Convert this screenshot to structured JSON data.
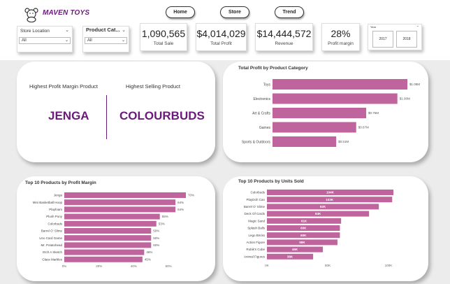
{
  "header": {
    "brand": "MAVEN TOYS",
    "nav": [
      {
        "label": "Home"
      },
      {
        "label": "Store"
      },
      {
        "label": "Trend"
      }
    ]
  },
  "slicers": {
    "store_location": {
      "label": "Store Location",
      "value": "All"
    },
    "product_category": {
      "label": "Product Cat...",
      "value": "All"
    }
  },
  "kpis": {
    "total_sale": {
      "value": "1,090,565",
      "caption": "Total Sale"
    },
    "total_profit": {
      "value": "$4,014,029",
      "caption": "Total Profit"
    },
    "revenue": {
      "value": "$14,444,572",
      "caption": "Revenue"
    },
    "profit_margin": {
      "value": "28%",
      "caption": "Profit margin"
    }
  },
  "year_slicer": {
    "label": "Year",
    "options": [
      "2017",
      "2018"
    ]
  },
  "highlights": {
    "margin_label": "Highest Profit Margin Product",
    "margin_value": "JENGA",
    "selling_label": "Highest Selling Product",
    "selling_value": "COLOURBUDS"
  },
  "colors": {
    "bar": "#c0649e",
    "accent": "#6a1b7a"
  },
  "chart_data": [
    {
      "type": "bar",
      "orientation": "horizontal",
      "title": "Total Profit by Product Category",
      "categories": [
        "Toys",
        "Electronics",
        "Art & Crafts",
        "Games",
        "Sports & Outdoors"
      ],
      "values": [
        1.08,
        1.0,
        0.75,
        0.67,
        0.51
      ],
      "data_labels": [
        "$1.08M",
        "$1.00M",
        "$0.75M",
        "$0.67M",
        "$0.51M"
      ],
      "xlim": [
        0,
        1.08
      ],
      "grid": false
    },
    {
      "type": "bar",
      "orientation": "horizontal",
      "title": "Top 10 Products by Profit Margin",
      "categories": [
        "Jenga",
        "Mini Basketball Hoop",
        "Playfoam",
        "Plush Pony",
        "Colorbuds",
        "Barrel O' Slime",
        "Uno Card Game",
        "Mr. Potatohead",
        "Etch A Sketch",
        "Glass Marbles"
      ],
      "values": [
        70,
        64,
        64,
        55,
        53,
        50,
        50,
        50,
        46,
        45
      ],
      "data_labels": [
        "70%",
        "64%",
        "64%",
        "55%",
        "53%",
        "50%",
        "50%",
        "50%",
        "46%",
        "45%"
      ],
      "xticks": [
        "0%",
        "20%",
        "40%",
        "60%"
      ],
      "xlim": [
        0,
        70
      ],
      "grid": false
    },
    {
      "type": "bar",
      "orientation": "horizontal",
      "title": "Top 10 Products by Units Sold",
      "categories": [
        "Colorbuds",
        "PlayDoh Can",
        "Barrel O' Slime",
        "Deck Of Cards",
        "Magic Sand",
        "Splash Balls",
        "Lego Bricks",
        "Action Figure",
        "Rubik's Cube",
        "Animal Figures"
      ],
      "values": [
        104,
        103,
        92,
        84,
        61,
        60,
        60,
        58,
        46,
        38
      ],
      "data_labels": [
        "104K",
        "103K",
        "92K",
        "84K",
        "61K",
        "60K",
        "60K",
        "58K",
        "46K",
        "38K"
      ],
      "xticks": [
        "0K",
        "50K",
        "100K"
      ],
      "xlim": [
        0,
        104
      ],
      "grid": false
    }
  ]
}
